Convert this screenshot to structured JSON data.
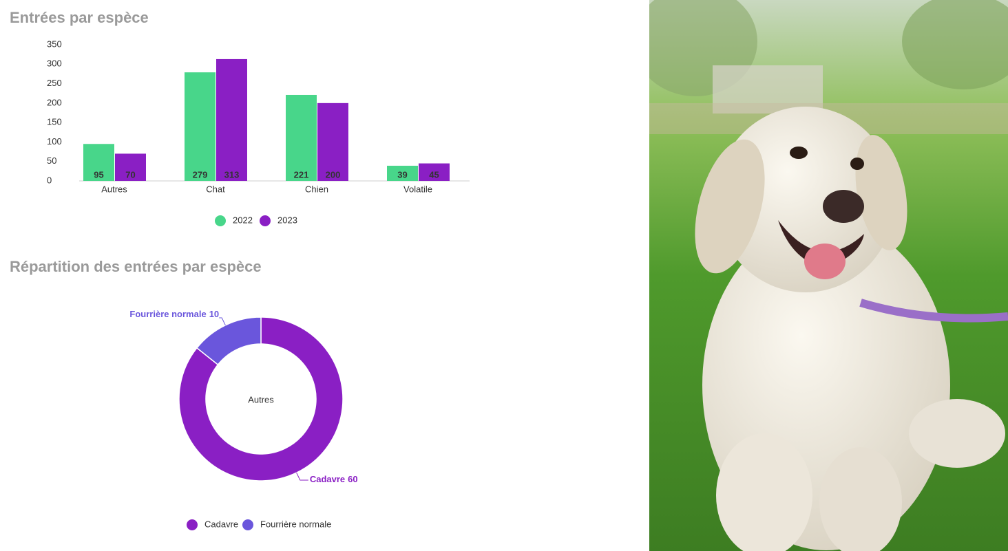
{
  "chart_data": [
    {
      "type": "bar",
      "title": "Entrées par espèce",
      "categories": [
        "Autres",
        "Chat",
        "Chien",
        "Volatile"
      ],
      "series": [
        {
          "name": "2022",
          "color": "#48d68a",
          "values": [
            95,
            279,
            221,
            39
          ]
        },
        {
          "name": "2023",
          "color": "#8a1fc4",
          "values": [
            70,
            313,
            200,
            45
          ]
        }
      ],
      "ylim": [
        0,
        350
      ],
      "yticks": [
        0,
        50,
        100,
        150,
        200,
        250,
        300,
        350
      ],
      "grid": false,
      "legend": "bottom"
    },
    {
      "type": "donut",
      "title": "Répartition des entrées par espèce",
      "center_label": "Autres",
      "labels": [
        "Cadavre",
        "Fourrière normale"
      ],
      "values": [
        60,
        10
      ],
      "colors": [
        "#8a1fc4",
        "#6a56dc"
      ],
      "legend": "bottom"
    }
  ]
}
